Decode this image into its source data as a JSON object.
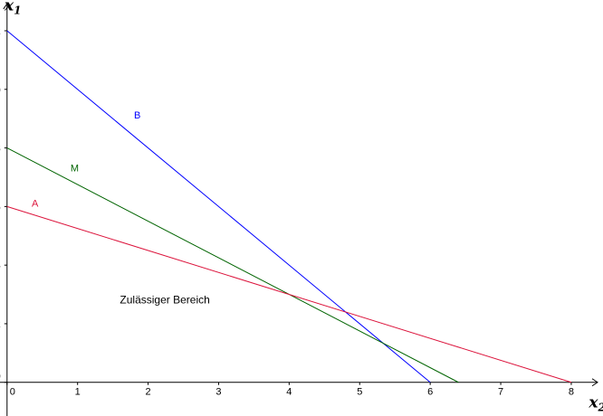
{
  "chart_data": {
    "type": "line",
    "title": "",
    "xlabel": {
      "main": "x",
      "sub": "2"
    },
    "ylabel": {
      "main": "x",
      "sub": "1"
    },
    "xlim": [
      -0.1,
      8.45
    ],
    "ylim": [
      -1.15,
      13.05
    ],
    "x_ticks": [
      0,
      1,
      2,
      3,
      4,
      5,
      6,
      7,
      8
    ],
    "y_ticks": [
      0,
      2,
      4,
      6,
      8,
      10,
      12
    ],
    "grid": false,
    "series": [
      {
        "name": "B",
        "color": "#0000ff",
        "points": [
          [
            0,
            12
          ],
          [
            6,
            0
          ]
        ],
        "label_at": [
          1.8,
          9.0
        ]
      },
      {
        "name": "M",
        "color": "#006400",
        "points": [
          [
            0,
            8
          ],
          [
            6.4,
            0
          ]
        ],
        "label_at": [
          0.9,
          7.2
        ]
      },
      {
        "name": "A",
        "color": "#dc143c",
        "points": [
          [
            0,
            6
          ],
          [
            8,
            0
          ]
        ],
        "label_at": [
          0.35,
          6.0
        ]
      }
    ],
    "annotations": [
      {
        "text": "Zulässiger Bereich",
        "x": 1.6,
        "y": 2.7
      }
    ]
  }
}
